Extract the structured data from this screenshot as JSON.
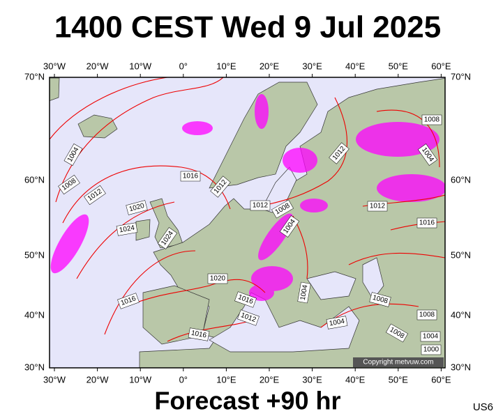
{
  "title": "1400 CEST Wed 9 Jul 2025",
  "footer": "Forecast +90 hr",
  "code": "US6",
  "copyright": "Copyright metvuw.com",
  "top_lon_labels": [
    "30°W",
    "20°W",
    "10°W",
    "0°",
    "10°E",
    "20°E",
    "30°E",
    "40°E",
    "50°E",
    "60°E"
  ],
  "bottom_lon_labels": [
    "30°W",
    "20°W",
    "10°W",
    "0°",
    "10°E",
    "20°E",
    "30°E",
    "40°E",
    "50°E",
    "60°E"
  ],
  "left_lat_labels": [
    "70°N",
    "60°N",
    "50°N",
    "40°N",
    "30°N"
  ],
  "right_lat_labels": [
    "70°N",
    "60°N",
    "50°N",
    "40°N",
    "30°N"
  ],
  "isobar_labels": [
    "1004",
    "1008",
    "1012",
    "1020",
    "1024",
    "1024",
    "1016",
    "1012",
    "1012",
    "1008",
    "1004",
    "1012",
    "1008",
    "1004",
    "1012",
    "1016",
    "1020",
    "1016",
    "1016",
    "1012",
    "1004",
    "1008",
    "1004",
    "1008",
    "1008",
    "1004",
    "1000",
    "1016"
  ]
}
